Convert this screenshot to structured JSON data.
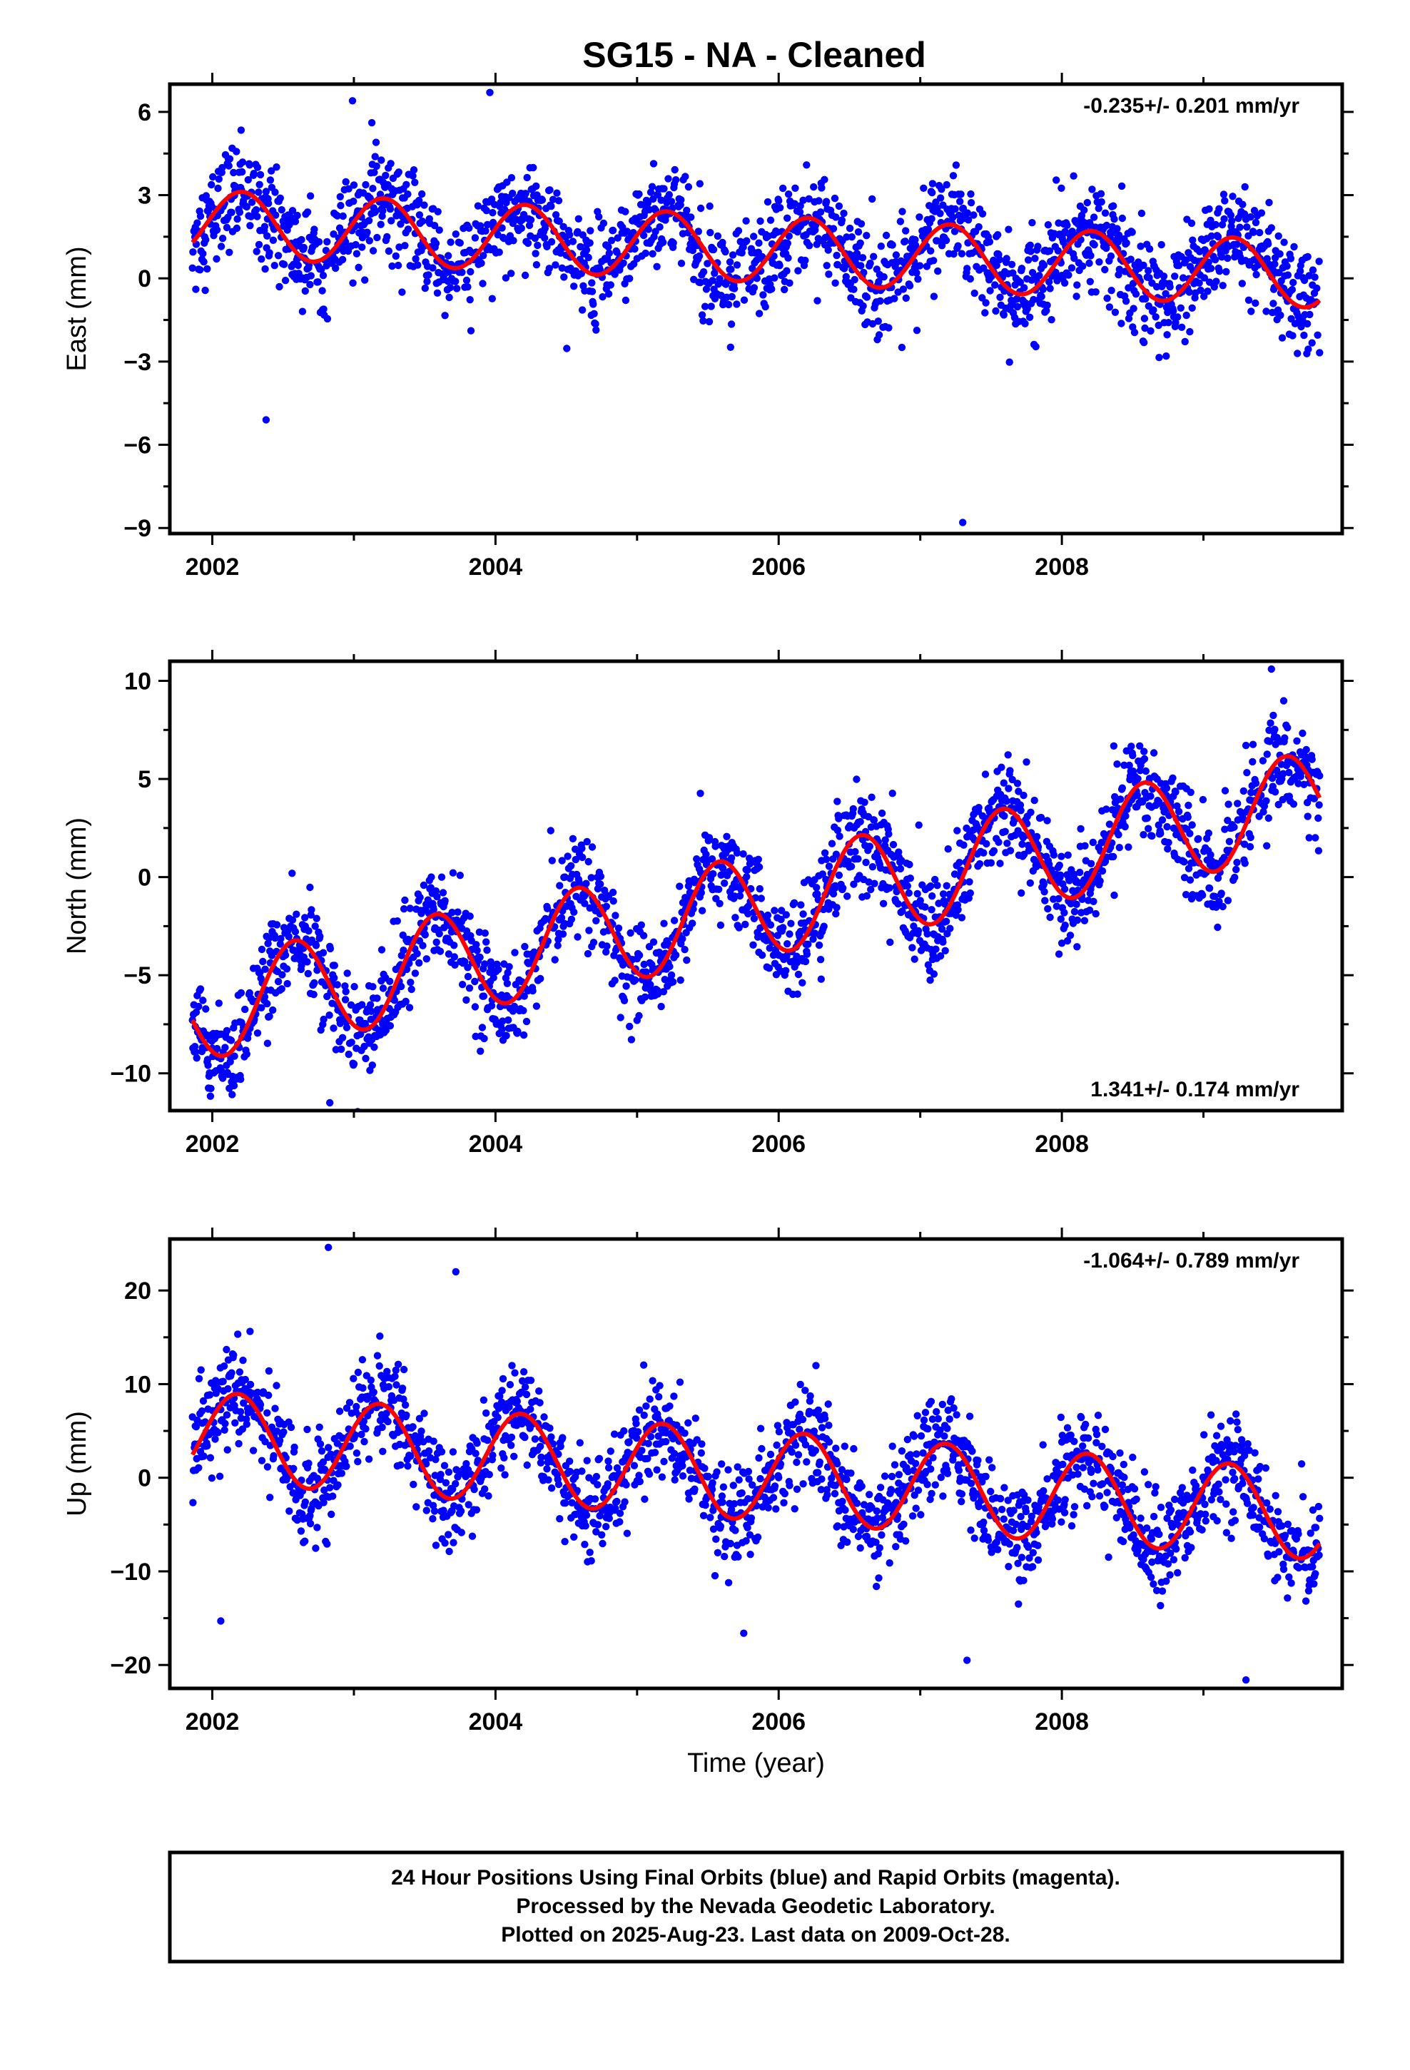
{
  "title": "SG15  - NA - Cleaned",
  "footer": {
    "line1": "24 Hour Positions Using Final Orbits (blue) and Rapid Orbits (magenta).",
    "line2": "Processed by the Nevada Geodetic Laboratory.",
    "line3": "Plotted on 2025-Aug-23. Last data on 2009-Oct-28."
  },
  "colors": {
    "points": "#0000ff",
    "model": "#ff0000",
    "frame": "#000000"
  },
  "chart_data": [
    {
      "type": "scatter",
      "ylabel": "East (mm)",
      "xlabel": "",
      "rate_text": "-0.235+/- 0.201 mm/yr",
      "rate_position": "top-right",
      "xlim": [
        2001.7,
        2009.98
      ],
      "ylim": [
        -9.2,
        7.0
      ],
      "xticks": [
        2002,
        2004,
        2006,
        2008
      ],
      "xtick_labels": [
        "2002",
        "2004",
        "2006",
        "2008"
      ],
      "yticks": [
        6,
        3,
        0,
        -3,
        -6,
        -9
      ],
      "ytick_labels": [
        "6",
        "3",
        "0",
        "−3",
        "−6",
        "−9"
      ],
      "data_range": [
        2001.86,
        2009.82
      ],
      "model": {
        "offset": 2.0,
        "trend": -0.235,
        "annual_amp": 1.2,
        "phase": 0.1
      },
      "outliers": [
        [
          2002.38,
          -5.1
        ],
        [
          2003.96,
          6.7
        ],
        [
          2007.3,
          -8.8
        ],
        [
          2002.99,
          6.4
        ]
      ],
      "series": [
        {
          "name": "Final Orbits",
          "point_color": "#0000ff"
        }
      ]
    },
    {
      "type": "scatter",
      "ylabel": "North (mm)",
      "xlabel": "",
      "rate_text": "1.341+/- 0.174 mm/yr",
      "rate_position": "bottom-right",
      "xlim": [
        2001.7,
        2009.98
      ],
      "ylim": [
        -11.9,
        11.0
      ],
      "xticks": [
        2002,
        2004,
        2006,
        2008
      ],
      "xtick_labels": [
        "2002",
        "2004",
        "2006",
        "2008"
      ],
      "yticks": [
        10,
        5,
        0,
        -5,
        -10
      ],
      "ytick_labels": [
        "10",
        "5",
        "0",
        "−5",
        "−10"
      ],
      "data_range": [
        2001.86,
        2009.82
      ],
      "model": {
        "offset": -6.8,
        "trend": 1.341,
        "annual_amp": 2.6,
        "phase": 0.47
      },
      "outliers": [
        [
          2002.83,
          -11.5
        ],
        [
          2009.48,
          10.6
        ],
        [
          2005.0,
          -7.3
        ]
      ],
      "series": [
        {
          "name": "Final Orbits",
          "point_color": "#0000ff"
        }
      ]
    },
    {
      "type": "scatter",
      "ylabel": "Up (mm)",
      "xlabel": "Time (year)",
      "rate_text": "-1.064+/- 0.789 mm/yr",
      "rate_position": "top-right",
      "xlim": [
        2001.7,
        2009.98
      ],
      "ylim": [
        -22.5,
        25.5
      ],
      "xticks": [
        2002,
        2004,
        2006,
        2008
      ],
      "xtick_labels": [
        "2002",
        "2004",
        "2006",
        "2008"
      ],
      "yticks": [
        20,
        10,
        0,
        -10,
        -20
      ],
      "ytick_labels": [
        "20",
        "10",
        "0",
        "−10",
        "−20"
      ],
      "data_range": [
        2001.86,
        2009.82
      ],
      "model": {
        "offset": 4.5,
        "trend": -1.064,
        "annual_amp": 4.8,
        "phase": 0.07
      },
      "outliers": [
        [
          2002.82,
          24.6
        ],
        [
          2003.72,
          22.0
        ],
        [
          2002.06,
          -15.3
        ],
        [
          2009.3,
          -21.6
        ],
        [
          2007.33,
          -19.5
        ]
      ],
      "series": [
        {
          "name": "Final Orbits",
          "point_color": "#0000ff"
        }
      ]
    }
  ]
}
